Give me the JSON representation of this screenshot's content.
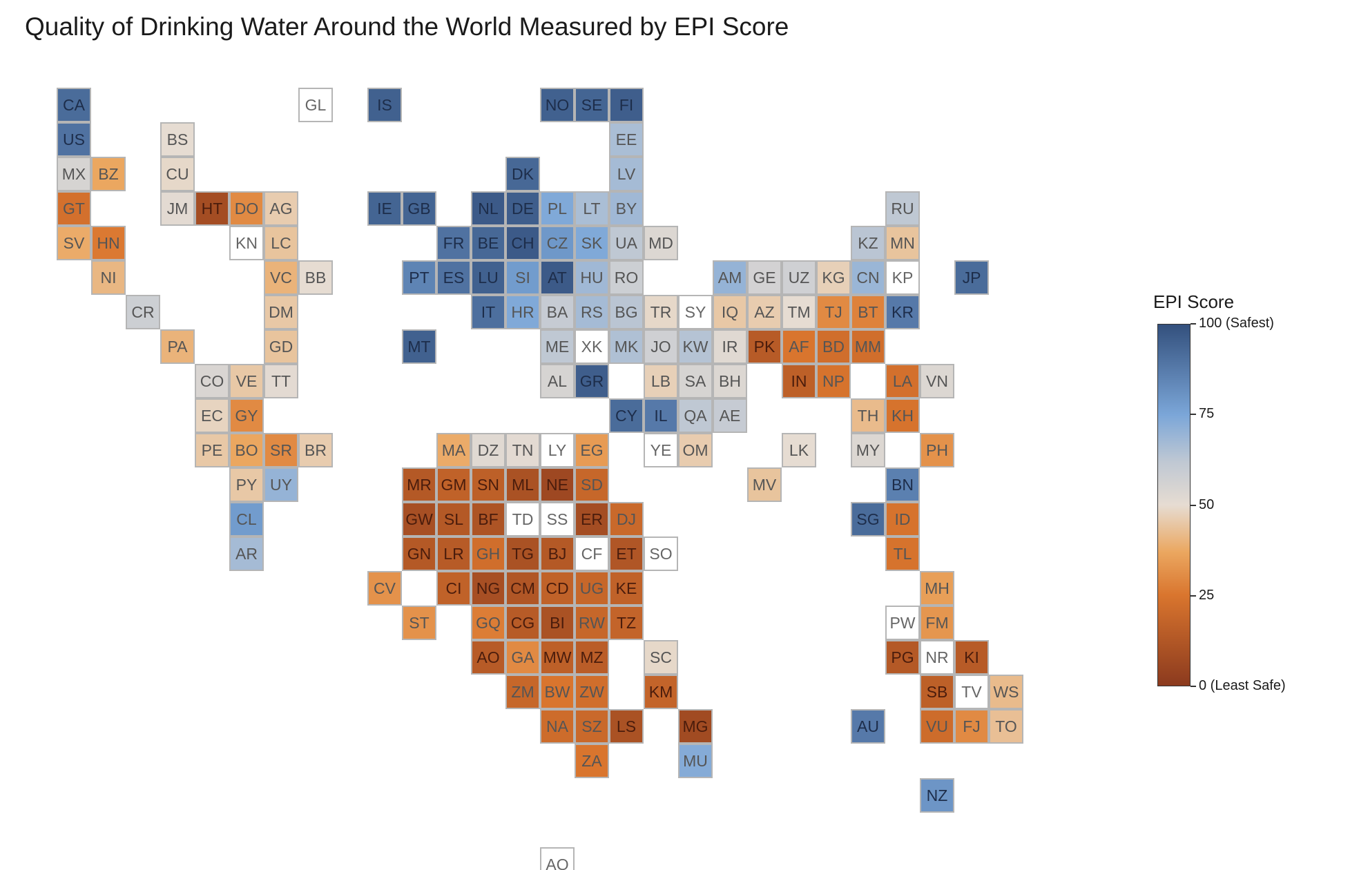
{
  "title": "Quality of Drinking Water Around the World Measured by EPI Score",
  "colorbar": {
    "title": "EPI Score",
    "ticks": [
      {
        "value": 100,
        "label": "100 (Safest)"
      },
      {
        "value": 75,
        "label": "75"
      },
      {
        "value": 50,
        "label": "50"
      },
      {
        "value": 25,
        "label": "25"
      },
      {
        "value": 0,
        "label": "0 (Least Safe)"
      }
    ],
    "colors": {
      "c0": "#8b3a1e",
      "c25": "#d9752e",
      "c37": "#eba760",
      "c50": "#e6dcd2",
      "c62": "#bfc8d3",
      "c75": "#7ba6d8",
      "c100": "#33507d"
    }
  },
  "chart_data": {
    "type": "heatmap",
    "title": "Quality of Drinking Water Around the World Measured by EPI Score",
    "colorbar_title": "EPI Score",
    "range": [
      0,
      100
    ],
    "tiles": [
      {
        "code": "CA",
        "col": 0,
        "row": 0,
        "value": 92
      },
      {
        "code": "GL",
        "col": 7,
        "row": 0,
        "value": null
      },
      {
        "code": "IS",
        "col": 9,
        "row": 0,
        "value": 95
      },
      {
        "code": "NO",
        "col": 14,
        "row": 0,
        "value": 95
      },
      {
        "code": "SE",
        "col": 15,
        "row": 0,
        "value": 94
      },
      {
        "code": "FI",
        "col": 16,
        "row": 0,
        "value": 96
      },
      {
        "code": "US",
        "col": 0,
        "row": 1,
        "value": 90
      },
      {
        "code": "BS",
        "col": 3,
        "row": 1,
        "value": 50
      },
      {
        "code": "EE",
        "col": 16,
        "row": 1,
        "value": 66
      },
      {
        "code": "MX",
        "col": 0,
        "row": 2,
        "value": 55
      },
      {
        "code": "BZ",
        "col": 1,
        "row": 2,
        "value": 37
      },
      {
        "code": "CU",
        "col": 3,
        "row": 2,
        "value": 49
      },
      {
        "code": "DK",
        "col": 13,
        "row": 2,
        "value": 93
      },
      {
        "code": "LV",
        "col": 16,
        "row": 2,
        "value": 67
      },
      {
        "code": "GT",
        "col": 0,
        "row": 3,
        "value": 23
      },
      {
        "code": "JM",
        "col": 3,
        "row": 3,
        "value": 51
      },
      {
        "code": "HT",
        "col": 4,
        "row": 3,
        "value": 8
      },
      {
        "code": "DO",
        "col": 5,
        "row": 3,
        "value": 30
      },
      {
        "code": "AG",
        "col": 6,
        "row": 3,
        "value": 46
      },
      {
        "code": "IE",
        "col": 9,
        "row": 3,
        "value": 94
      },
      {
        "code": "GB",
        "col": 10,
        "row": 3,
        "value": 94
      },
      {
        "code": "NL",
        "col": 12,
        "row": 3,
        "value": 97
      },
      {
        "code": "DE",
        "col": 13,
        "row": 3,
        "value": 96
      },
      {
        "code": "PL",
        "col": 14,
        "row": 3,
        "value": 74
      },
      {
        "code": "LT",
        "col": 15,
        "row": 3,
        "value": 66
      },
      {
        "code": "BY",
        "col": 16,
        "row": 3,
        "value": 68
      },
      {
        "code": "RU",
        "col": 24,
        "row": 3,
        "value": 62
      },
      {
        "code": "SV",
        "col": 0,
        "row": 4,
        "value": 38
      },
      {
        "code": "HN",
        "col": 1,
        "row": 4,
        "value": 26
      },
      {
        "code": "KN",
        "col": 5,
        "row": 4,
        "value": null
      },
      {
        "code": "LC",
        "col": 6,
        "row": 4,
        "value": 44
      },
      {
        "code": "FR",
        "col": 11,
        "row": 4,
        "value": 90
      },
      {
        "code": "BE",
        "col": 12,
        "row": 4,
        "value": 93
      },
      {
        "code": "CH",
        "col": 13,
        "row": 4,
        "value": 97
      },
      {
        "code": "CZ",
        "col": 14,
        "row": 4,
        "value": 79
      },
      {
        "code": "SK",
        "col": 15,
        "row": 4,
        "value": 74
      },
      {
        "code": "UA",
        "col": 16,
        "row": 4,
        "value": 62
      },
      {
        "code": "MD",
        "col": 17,
        "row": 4,
        "value": 53
      },
      {
        "code": "KZ",
        "col": 23,
        "row": 4,
        "value": 63
      },
      {
        "code": "MN",
        "col": 24,
        "row": 4,
        "value": 44
      },
      {
        "code": "NI",
        "col": 1,
        "row": 5,
        "value": 41
      },
      {
        "code": "VC",
        "col": 6,
        "row": 5,
        "value": 40
      },
      {
        "code": "BB",
        "col": 7,
        "row": 5,
        "value": 50
      },
      {
        "code": "PT",
        "col": 10,
        "row": 5,
        "value": 85
      },
      {
        "code": "ES",
        "col": 11,
        "row": 5,
        "value": 90
      },
      {
        "code": "LU",
        "col": 12,
        "row": 5,
        "value": 95
      },
      {
        "code": "SI",
        "col": 13,
        "row": 5,
        "value": 78
      },
      {
        "code": "AT",
        "col": 14,
        "row": 5,
        "value": 97
      },
      {
        "code": "HU",
        "col": 15,
        "row": 5,
        "value": 68
      },
      {
        "code": "RO",
        "col": 16,
        "row": 5,
        "value": 58
      },
      {
        "code": "AM",
        "col": 19,
        "row": 5,
        "value": 70
      },
      {
        "code": "GE",
        "col": 20,
        "row": 5,
        "value": 56
      },
      {
        "code": "UZ",
        "col": 21,
        "row": 5,
        "value": 57
      },
      {
        "code": "KG",
        "col": 22,
        "row": 5,
        "value": 47
      },
      {
        "code": "CN",
        "col": 23,
        "row": 5,
        "value": 69
      },
      {
        "code": "KP",
        "col": 24,
        "row": 5,
        "value": null
      },
      {
        "code": "JP",
        "col": 26,
        "row": 5,
        "value": 92
      },
      {
        "code": "CR",
        "col": 2,
        "row": 6,
        "value": 58
      },
      {
        "code": "DM",
        "col": 6,
        "row": 6,
        "value": 45
      },
      {
        "code": "IT",
        "col": 12,
        "row": 6,
        "value": 91
      },
      {
        "code": "HR",
        "col": 13,
        "row": 6,
        "value": 74
      },
      {
        "code": "BA",
        "col": 14,
        "row": 6,
        "value": 60
      },
      {
        "code": "RS",
        "col": 15,
        "row": 6,
        "value": 67
      },
      {
        "code": "BG",
        "col": 16,
        "row": 6,
        "value": 63
      },
      {
        "code": "TR",
        "col": 17,
        "row": 6,
        "value": 49
      },
      {
        "code": "SY",
        "col": 18,
        "row": 6,
        "value": null
      },
      {
        "code": "IQ",
        "col": 19,
        "row": 6,
        "value": 45
      },
      {
        "code": "AZ",
        "col": 20,
        "row": 6,
        "value": 46
      },
      {
        "code": "TM",
        "col": 21,
        "row": 6,
        "value": 50
      },
      {
        "code": "TJ",
        "col": 22,
        "row": 6,
        "value": 30
      },
      {
        "code": "BT",
        "col": 23,
        "row": 6,
        "value": 28
      },
      {
        "code": "KR",
        "col": 24,
        "row": 6,
        "value": 88
      },
      {
        "code": "PA",
        "col": 3,
        "row": 7,
        "value": 40
      },
      {
        "code": "GD",
        "col": 6,
        "row": 7,
        "value": 44
      },
      {
        "code": "MT",
        "col": 10,
        "row": 7,
        "value": 95
      },
      {
        "code": "ME",
        "col": 14,
        "row": 7,
        "value": 62
      },
      {
        "code": "XK",
        "col": 15,
        "row": 7,
        "value": null
      },
      {
        "code": "MK",
        "col": 16,
        "row": 7,
        "value": 65
      },
      {
        "code": "JO",
        "col": 17,
        "row": 7,
        "value": 57
      },
      {
        "code": "KW",
        "col": 18,
        "row": 7,
        "value": 64
      },
      {
        "code": "IR",
        "col": 19,
        "row": 7,
        "value": 52
      },
      {
        "code": "PK",
        "col": 20,
        "row": 7,
        "value": 14
      },
      {
        "code": "AF",
        "col": 21,
        "row": 7,
        "value": 25
      },
      {
        "code": "BD",
        "col": 22,
        "row": 7,
        "value": 22
      },
      {
        "code": "MM",
        "col": 23,
        "row": 7,
        "value": 22
      },
      {
        "code": "CO",
        "col": 4,
        "row": 8,
        "value": 54
      },
      {
        "code": "VE",
        "col": 5,
        "row": 8,
        "value": 45
      },
      {
        "code": "TT",
        "col": 6,
        "row": 8,
        "value": 51
      },
      {
        "code": "AL",
        "col": 14,
        "row": 8,
        "value": 55
      },
      {
        "code": "GR",
        "col": 15,
        "row": 8,
        "value": 96
      },
      {
        "code": "LB",
        "col": 17,
        "row": 8,
        "value": 47
      },
      {
        "code": "SA",
        "col": 18,
        "row": 8,
        "value": 55
      },
      {
        "code": "BH",
        "col": 19,
        "row": 8,
        "value": 53
      },
      {
        "code": "IN",
        "col": 21,
        "row": 8,
        "value": 16
      },
      {
        "code": "NP",
        "col": 22,
        "row": 8,
        "value": 24
      },
      {
        "code": "LA",
        "col": 24,
        "row": 8,
        "value": 23
      },
      {
        "code": "VN",
        "col": 25,
        "row": 8,
        "value": 53
      },
      {
        "code": "EC",
        "col": 4,
        "row": 9,
        "value": 48
      },
      {
        "code": "GY",
        "col": 5,
        "row": 9,
        "value": 30
      },
      {
        "code": "CY",
        "col": 16,
        "row": 9,
        "value": 92
      },
      {
        "code": "IL",
        "col": 17,
        "row": 9,
        "value": 88
      },
      {
        "code": "QA",
        "col": 18,
        "row": 9,
        "value": 62
      },
      {
        "code": "AE",
        "col": 19,
        "row": 9,
        "value": 60
      },
      {
        "code": "TH",
        "col": 23,
        "row": 9,
        "value": 42
      },
      {
        "code": "KH",
        "col": 24,
        "row": 9,
        "value": 24
      },
      {
        "code": "PE",
        "col": 4,
        "row": 10,
        "value": 45
      },
      {
        "code": "BO",
        "col": 5,
        "row": 10,
        "value": 37
      },
      {
        "code": "SR",
        "col": 6,
        "row": 10,
        "value": 30
      },
      {
        "code": "BR",
        "col": 7,
        "row": 10,
        "value": 46
      },
      {
        "code": "MA",
        "col": 11,
        "row": 10,
        "value": 38
      },
      {
        "code": "DZ",
        "col": 12,
        "row": 10,
        "value": 52
      },
      {
        "code": "TN",
        "col": 13,
        "row": 10,
        "value": 51
      },
      {
        "code": "LY",
        "col": 14,
        "row": 10,
        "value": null
      },
      {
        "code": "EG",
        "col": 15,
        "row": 10,
        "value": 34
      },
      {
        "code": "YE",
        "col": 17,
        "row": 10,
        "value": null
      },
      {
        "code": "OM",
        "col": 18,
        "row": 10,
        "value": 46
      },
      {
        "code": "LK",
        "col": 21,
        "row": 10,
        "value": 50
      },
      {
        "code": "MY",
        "col": 23,
        "row": 10,
        "value": 53
      },
      {
        "code": "PH",
        "col": 25,
        "row": 10,
        "value": 32
      },
      {
        "code": "PY",
        "col": 5,
        "row": 11,
        "value": 45
      },
      {
        "code": "UY",
        "col": 6,
        "row": 11,
        "value": 70
      },
      {
        "code": "MR",
        "col": 10,
        "row": 11,
        "value": 13
      },
      {
        "code": "GM",
        "col": 11,
        "row": 11,
        "value": 17
      },
      {
        "code": "SN",
        "col": 12,
        "row": 11,
        "value": 16
      },
      {
        "code": "ML",
        "col": 13,
        "row": 11,
        "value": 10
      },
      {
        "code": "NE",
        "col": 14,
        "row": 11,
        "value": 6
      },
      {
        "code": "SD",
        "col": 15,
        "row": 11,
        "value": 19
      },
      {
        "code": "MV",
        "col": 20,
        "row": 11,
        "value": 44
      },
      {
        "code": "BN",
        "col": 24,
        "row": 11,
        "value": 86
      },
      {
        "code": "CL",
        "col": 5,
        "row": 12,
        "value": 78
      },
      {
        "code": "GW",
        "col": 10,
        "row": 12,
        "value": 9
      },
      {
        "code": "SL",
        "col": 11,
        "row": 12,
        "value": 13
      },
      {
        "code": "BF",
        "col": 12,
        "row": 12,
        "value": 11
      },
      {
        "code": "TD",
        "col": 13,
        "row": 12,
        "value": null
      },
      {
        "code": "SS",
        "col": 14,
        "row": 12,
        "value": null
      },
      {
        "code": "ER",
        "col": 15,
        "row": 12,
        "value": 8
      },
      {
        "code": "DJ",
        "col": 16,
        "row": 12,
        "value": 20
      },
      {
        "code": "SG",
        "col": 23,
        "row": 12,
        "value": 92
      },
      {
        "code": "ID",
        "col": 24,
        "row": 12,
        "value": 24
      },
      {
        "code": "AR",
        "col": 5,
        "row": 13,
        "value": 67
      },
      {
        "code": "GN",
        "col": 10,
        "row": 13,
        "value": 13
      },
      {
        "code": "LR",
        "col": 11,
        "row": 13,
        "value": 14
      },
      {
        "code": "GH",
        "col": 12,
        "row": 13,
        "value": 22
      },
      {
        "code": "TG",
        "col": 13,
        "row": 13,
        "value": 10
      },
      {
        "code": "BJ",
        "col": 14,
        "row": 13,
        "value": 13
      },
      {
        "code": "CF",
        "col": 15,
        "row": 13,
        "value": null
      },
      {
        "code": "ET",
        "col": 16,
        "row": 13,
        "value": 12
      },
      {
        "code": "SO",
        "col": 17,
        "row": 13,
        "value": null
      },
      {
        "code": "TL",
        "col": 24,
        "row": 13,
        "value": 24
      },
      {
        "code": "CV",
        "col": 9,
        "row": 14,
        "value": 32
      },
      {
        "code": "CI",
        "col": 11,
        "row": 14,
        "value": 17
      },
      {
        "code": "NG",
        "col": 12,
        "row": 14,
        "value": 9
      },
      {
        "code": "CM",
        "col": 13,
        "row": 14,
        "value": 12
      },
      {
        "code": "CD",
        "col": 14,
        "row": 14,
        "value": 17
      },
      {
        "code": "UG",
        "col": 15,
        "row": 14,
        "value": 19
      },
      {
        "code": "KE",
        "col": 16,
        "row": 14,
        "value": 17
      },
      {
        "code": "MH",
        "col": 25,
        "row": 14,
        "value": 35
      },
      {
        "code": "ST",
        "col": 10,
        "row": 15,
        "value": 32
      },
      {
        "code": "GQ",
        "col": 12,
        "row": 15,
        "value": 27
      },
      {
        "code": "CG",
        "col": 13,
        "row": 15,
        "value": 14
      },
      {
        "code": "BI",
        "col": 14,
        "row": 15,
        "value": 10
      },
      {
        "code": "RW",
        "col": 15,
        "row": 15,
        "value": 19
      },
      {
        "code": "TZ",
        "col": 16,
        "row": 15,
        "value": 18
      },
      {
        "code": "PW",
        "col": 24,
        "row": 15,
        "value": null
      },
      {
        "code": "FM",
        "col": 25,
        "row": 15,
        "value": 33
      },
      {
        "code": "AO",
        "col": 12,
        "row": 16,
        "value": 14
      },
      {
        "code": "GA",
        "col": 13,
        "row": 16,
        "value": 30
      },
      {
        "code": "MW",
        "col": 14,
        "row": 16,
        "value": 16
      },
      {
        "code": "MZ",
        "col": 15,
        "row": 16,
        "value": 15
      },
      {
        "code": "SC",
        "col": 17,
        "row": 16,
        "value": 49
      },
      {
        "code": "PG",
        "col": 24,
        "row": 16,
        "value": 13
      },
      {
        "code": "NR",
        "col": 25,
        "row": 16,
        "value": null
      },
      {
        "code": "KI",
        "col": 26,
        "row": 16,
        "value": 14
      },
      {
        "code": "ZM",
        "col": 13,
        "row": 17,
        "value": 19
      },
      {
        "code": "BW",
        "col": 14,
        "row": 17,
        "value": 25
      },
      {
        "code": "ZW",
        "col": 15,
        "row": 17,
        "value": 22
      },
      {
        "code": "KM",
        "col": 17,
        "row": 17,
        "value": 18
      },
      {
        "code": "SB",
        "col": 25,
        "row": 17,
        "value": 16
      },
      {
        "code": "TV",
        "col": 26,
        "row": 17,
        "value": null
      },
      {
        "code": "WS",
        "col": 27,
        "row": 17,
        "value": 42
      },
      {
        "code": "NA",
        "col": 14,
        "row": 18,
        "value": 21
      },
      {
        "code": "SZ",
        "col": 15,
        "row": 18,
        "value": 20
      },
      {
        "code": "LS",
        "col": 16,
        "row": 18,
        "value": 10
      },
      {
        "code": "MG",
        "col": 18,
        "row": 18,
        "value": 7
      },
      {
        "code": "AU",
        "col": 23,
        "row": 18,
        "value": 88
      },
      {
        "code": "VU",
        "col": 25,
        "row": 18,
        "value": 21
      },
      {
        "code": "FJ",
        "col": 26,
        "row": 18,
        "value": 30
      },
      {
        "code": "TO",
        "col": 27,
        "row": 18,
        "value": 43
      },
      {
        "code": "ZA",
        "col": 15,
        "row": 19,
        "value": 25
      },
      {
        "code": "MU",
        "col": 18,
        "row": 19,
        "value": 73
      },
      {
        "code": "NZ",
        "col": 25,
        "row": 20,
        "value": 80
      },
      {
        "code": "AQ",
        "col": 14,
        "row": 22,
        "value": null
      }
    ]
  }
}
